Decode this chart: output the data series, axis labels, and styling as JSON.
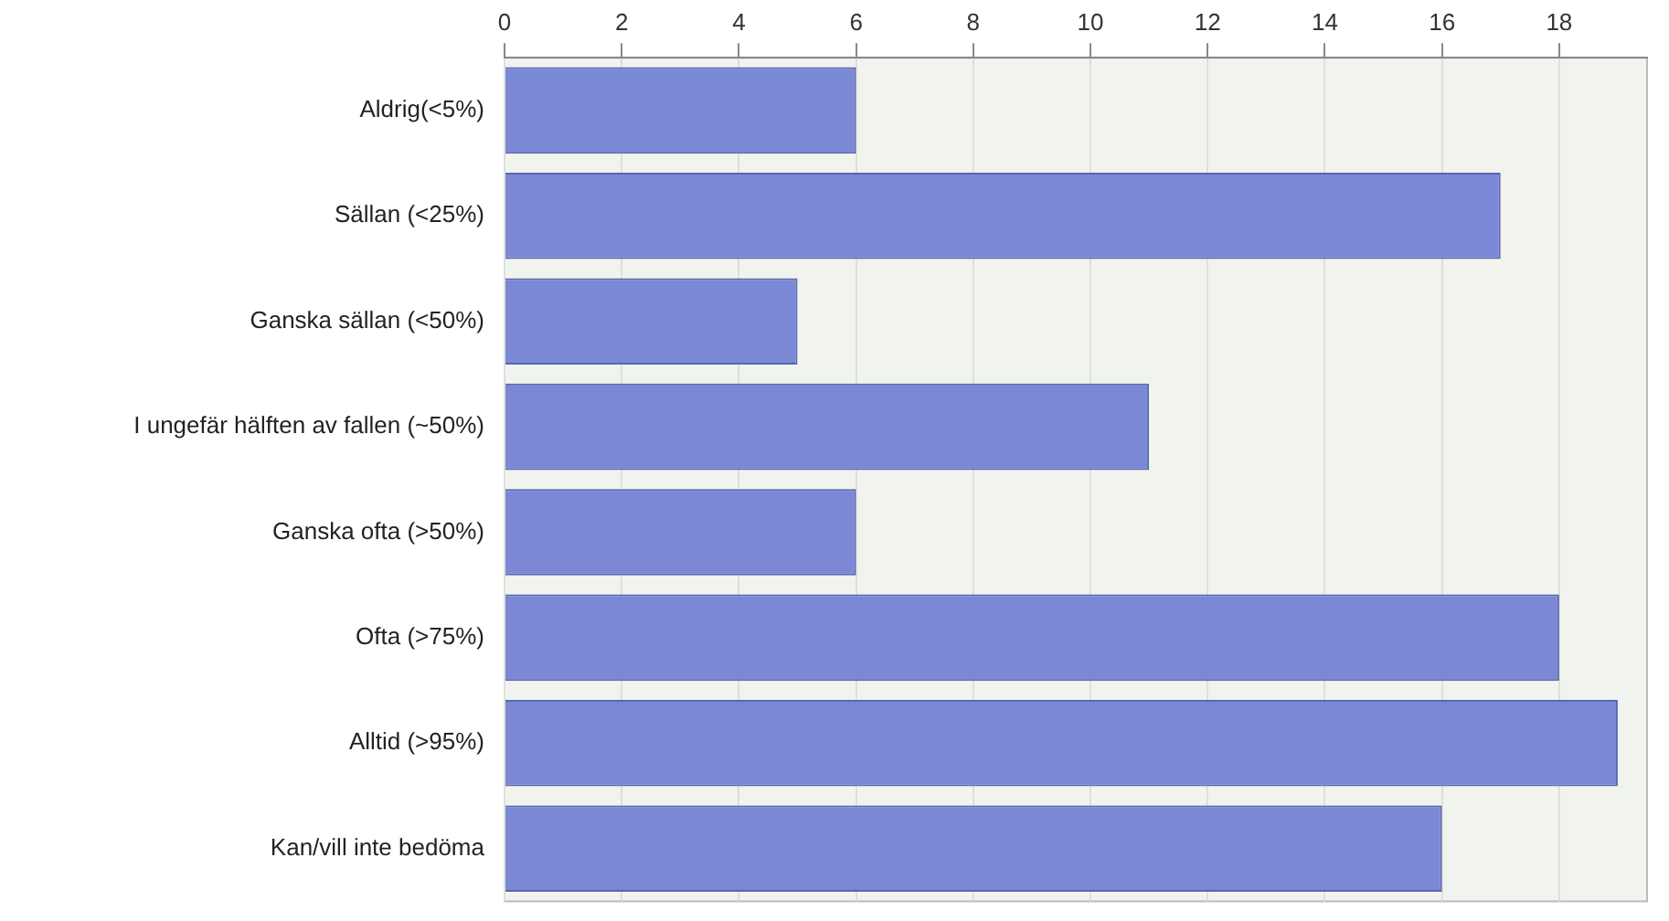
{
  "chart_data": {
    "type": "bar",
    "orientation": "horizontal",
    "categories": [
      "Aldrig(<5%)",
      "Sällan (<25%)",
      "Ganska sällan (<50%)",
      "I ungefär hälften av fallen (~50%)",
      "Ganska ofta (>50%)",
      "Ofta (>75%)",
      "Alltid (>95%)",
      "Kan/vill inte bedöma"
    ],
    "values": [
      6,
      17,
      5,
      11,
      6,
      18,
      19,
      16
    ],
    "color": "#7b88d6",
    "xlim": [
      0,
      19.5
    ],
    "xticks": [
      0,
      2,
      4,
      6,
      8,
      10,
      12,
      14,
      16,
      18
    ],
    "grid": "x",
    "legend": false
  }
}
